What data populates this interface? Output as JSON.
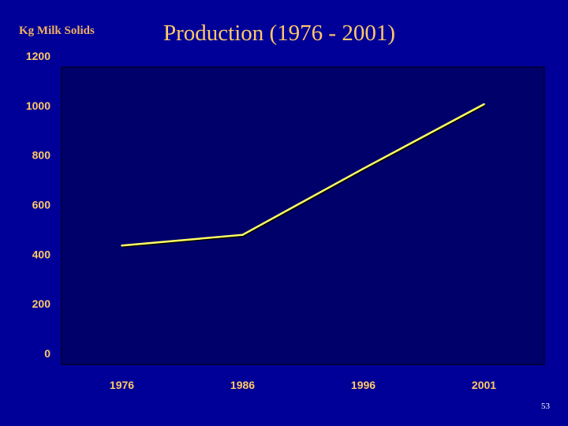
{
  "slide_number": "53",
  "chart_data": {
    "type": "line",
    "title": "Production (1976 - 2001)",
    "xlabel": "",
    "ylabel": "Kg Milk Solids",
    "categories": [
      "1976",
      "1986",
      "1996",
      "2001"
    ],
    "series": [
      {
        "values": [
          480,
          523,
          790,
          1050
        ]
      }
    ],
    "ylim": [
      0,
      1200
    ],
    "yticks": [
      "0",
      "200",
      "400",
      "600",
      "800",
      "1000",
      "1200"
    ],
    "grid": false,
    "legend": "none",
    "colors": {
      "background": "#000099",
      "plot_area": "#00006B",
      "line": "#FFFF66",
      "tick_labels": "#FFC868",
      "title": "#FFC868",
      "ylabel": "#F0B060"
    }
  }
}
